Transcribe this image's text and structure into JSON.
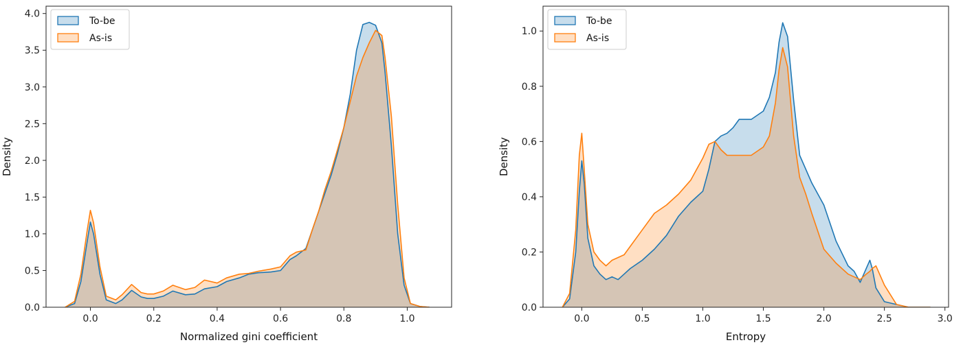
{
  "chart_data": [
    {
      "type": "area",
      "title": "",
      "xlabel": "Normalized gini coefficient",
      "ylabel": "Density",
      "xlim": [
        -0.14,
        1.14
      ],
      "ylim": [
        0,
        4.1
      ],
      "xticks": [
        0.0,
        0.2,
        0.4,
        0.6,
        0.8,
        1.0
      ],
      "xtick_labels": [
        "0.0",
        "0.2",
        "0.4",
        "0.6",
        "0.8",
        "1.0"
      ],
      "yticks": [
        0.0,
        0.5,
        1.0,
        1.5,
        2.0,
        2.5,
        3.0,
        3.5,
        4.0
      ],
      "ytick_labels": [
        "0.0",
        "0.5",
        "1.0",
        "1.5",
        "2.0",
        "2.5",
        "3.0",
        "3.5",
        "4.0"
      ],
      "grid": false,
      "legend_position": "top-left",
      "series": [
        {
          "name": "To-be",
          "color": "#1f77b4",
          "x": [
            -0.08,
            -0.05,
            -0.03,
            -0.01,
            0.0,
            0.01,
            0.03,
            0.05,
            0.08,
            0.1,
            0.13,
            0.16,
            0.18,
            0.2,
            0.23,
            0.26,
            0.3,
            0.33,
            0.36,
            0.4,
            0.43,
            0.47,
            0.5,
            0.53,
            0.57,
            0.6,
            0.63,
            0.65,
            0.68,
            0.7,
            0.72,
            0.74,
            0.76,
            0.78,
            0.8,
            0.82,
            0.84,
            0.86,
            0.88,
            0.9,
            0.92,
            0.93,
            0.95,
            0.97,
            0.99,
            1.01,
            1.04,
            1.07
          ],
          "values": [
            0.0,
            0.05,
            0.35,
            0.9,
            1.16,
            1.0,
            0.45,
            0.1,
            0.05,
            0.1,
            0.23,
            0.14,
            0.12,
            0.12,
            0.15,
            0.22,
            0.17,
            0.18,
            0.25,
            0.28,
            0.35,
            0.4,
            0.45,
            0.47,
            0.48,
            0.5,
            0.65,
            0.7,
            0.8,
            1.05,
            1.3,
            1.55,
            1.8,
            2.1,
            2.45,
            2.9,
            3.5,
            3.85,
            3.88,
            3.84,
            3.6,
            3.2,
            2.2,
            1.0,
            0.3,
            0.05,
            0.01,
            0.0
          ]
        },
        {
          "name": "As-is",
          "color": "#ff7f0e",
          "x": [
            -0.08,
            -0.05,
            -0.03,
            -0.01,
            0.0,
            0.01,
            0.03,
            0.05,
            0.08,
            0.1,
            0.13,
            0.16,
            0.18,
            0.2,
            0.23,
            0.26,
            0.3,
            0.33,
            0.36,
            0.4,
            0.43,
            0.47,
            0.5,
            0.53,
            0.57,
            0.6,
            0.63,
            0.65,
            0.68,
            0.7,
            0.72,
            0.74,
            0.76,
            0.78,
            0.8,
            0.82,
            0.84,
            0.86,
            0.88,
            0.9,
            0.92,
            0.93,
            0.95,
            0.97,
            0.99,
            1.01,
            1.04,
            1.07
          ],
          "values": [
            0.0,
            0.08,
            0.45,
            1.05,
            1.32,
            1.15,
            0.55,
            0.15,
            0.1,
            0.17,
            0.31,
            0.2,
            0.18,
            0.18,
            0.22,
            0.3,
            0.24,
            0.27,
            0.37,
            0.33,
            0.4,
            0.45,
            0.46,
            0.49,
            0.52,
            0.55,
            0.7,
            0.75,
            0.78,
            1.05,
            1.3,
            1.6,
            1.85,
            2.15,
            2.45,
            2.8,
            3.15,
            3.4,
            3.6,
            3.77,
            3.7,
            3.4,
            2.6,
            1.4,
            0.4,
            0.05,
            0.01,
            0.0
          ]
        }
      ]
    },
    {
      "type": "area",
      "title": "",
      "xlabel": "Entropy",
      "ylabel": "Density",
      "xlim": [
        -0.32,
        3.03
      ],
      "ylim": [
        0,
        1.09
      ],
      "xticks": [
        0.0,
        0.5,
        1.0,
        1.5,
        2.0,
        2.5,
        3.0
      ],
      "xtick_labels": [
        "0.0",
        "0.5",
        "1.0",
        "1.5",
        "2.0",
        "2.5",
        "3.0"
      ],
      "yticks": [
        0.0,
        0.2,
        0.4,
        0.6,
        0.8,
        1.0
      ],
      "ytick_labels": [
        "0.0",
        "0.2",
        "0.4",
        "0.6",
        "0.8",
        "1.0"
      ],
      "grid": false,
      "legend_position": "top-left",
      "series": [
        {
          "name": "To-be",
          "color": "#1f77b4",
          "x": [
            -0.16,
            -0.1,
            -0.05,
            -0.02,
            0.0,
            0.02,
            0.05,
            0.1,
            0.15,
            0.2,
            0.25,
            0.3,
            0.35,
            0.4,
            0.5,
            0.6,
            0.7,
            0.8,
            0.9,
            1.0,
            1.05,
            1.1,
            1.15,
            1.2,
            1.25,
            1.3,
            1.4,
            1.5,
            1.55,
            1.6,
            1.63,
            1.66,
            1.7,
            1.75,
            1.8,
            1.85,
            1.9,
            2.0,
            2.1,
            2.2,
            2.25,
            2.3,
            2.35,
            2.38,
            2.4,
            2.43,
            2.5,
            2.6,
            2.7,
            2.8,
            2.88
          ],
          "values": [
            0.0,
            0.03,
            0.2,
            0.42,
            0.53,
            0.45,
            0.25,
            0.15,
            0.12,
            0.1,
            0.11,
            0.1,
            0.12,
            0.14,
            0.17,
            0.21,
            0.26,
            0.33,
            0.38,
            0.42,
            0.5,
            0.6,
            0.62,
            0.63,
            0.65,
            0.68,
            0.68,
            0.71,
            0.76,
            0.85,
            0.96,
            1.03,
            0.98,
            0.75,
            0.55,
            0.5,
            0.45,
            0.37,
            0.24,
            0.15,
            0.13,
            0.09,
            0.14,
            0.17,
            0.14,
            0.07,
            0.02,
            0.01,
            0.0,
            0.0,
            0.0
          ]
        },
        {
          "name": "As-is",
          "color": "#ff7f0e",
          "x": [
            -0.16,
            -0.1,
            -0.05,
            -0.02,
            0.0,
            0.02,
            0.05,
            0.1,
            0.15,
            0.2,
            0.25,
            0.3,
            0.35,
            0.4,
            0.5,
            0.6,
            0.7,
            0.8,
            0.9,
            1.0,
            1.05,
            1.1,
            1.15,
            1.2,
            1.25,
            1.3,
            1.4,
            1.5,
            1.55,
            1.6,
            1.63,
            1.66,
            1.7,
            1.75,
            1.8,
            1.85,
            1.9,
            2.0,
            2.1,
            2.2,
            2.25,
            2.3,
            2.35,
            2.38,
            2.4,
            2.43,
            2.5,
            2.6,
            2.7,
            2.8,
            2.88
          ],
          "values": [
            0.0,
            0.05,
            0.28,
            0.55,
            0.63,
            0.5,
            0.3,
            0.2,
            0.17,
            0.15,
            0.17,
            0.18,
            0.19,
            0.22,
            0.28,
            0.34,
            0.37,
            0.41,
            0.46,
            0.54,
            0.59,
            0.6,
            0.57,
            0.55,
            0.55,
            0.55,
            0.55,
            0.58,
            0.62,
            0.74,
            0.86,
            0.94,
            0.87,
            0.62,
            0.47,
            0.41,
            0.34,
            0.21,
            0.16,
            0.12,
            0.11,
            0.1,
            0.12,
            0.13,
            0.14,
            0.15,
            0.08,
            0.01,
            0.0,
            0.0,
            0.0
          ]
        }
      ]
    }
  ]
}
